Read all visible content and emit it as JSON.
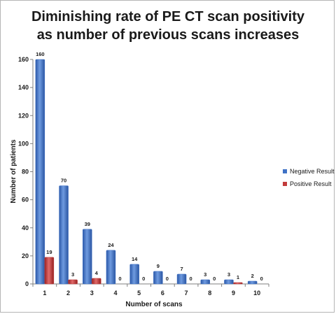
{
  "chart_data": {
    "type": "bar",
    "title_lines": [
      "Diminishing rate of PE CT scan positivity",
      "as number of previous scans increases"
    ],
    "xlabel": "Number of scans",
    "ylabel": "Number of patients",
    "categories": [
      "1",
      "2",
      "3",
      "4",
      "5",
      "6",
      "7",
      "8",
      "9",
      "10"
    ],
    "ylim": [
      0,
      160
    ],
    "yticks": [
      0,
      20,
      40,
      60,
      80,
      100,
      120,
      140,
      160
    ],
    "series": [
      {
        "name": "Negative Result",
        "color": "#3f72c6",
        "values": [
          160,
          70,
          39,
          24,
          14,
          9,
          7,
          3,
          3,
          2
        ]
      },
      {
        "name": "Positive Result",
        "color": "#c23b3b",
        "values": [
          19,
          3,
          4,
          0,
          0,
          0,
          0,
          0,
          1,
          0
        ]
      }
    ],
    "legend_position": "right",
    "grid": false
  }
}
